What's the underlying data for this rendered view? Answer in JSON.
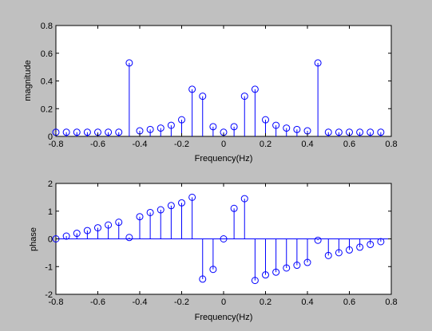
{
  "chart_data": [
    {
      "type": "stem",
      "xlabel": "Frequency(Hz)",
      "ylabel": "magnitude",
      "xlim": [
        -0.8,
        0.8
      ],
      "ylim": [
        0,
        0.8
      ],
      "xticks": [
        "-0.8",
        "-0.6",
        "-0.4",
        "-0.2",
        "0",
        "0.2",
        "0.4",
        "0.6",
        "0.8"
      ],
      "yticks": [
        "0",
        "0.2",
        "0.4",
        "0.6",
        "0.8"
      ],
      "grid": false,
      "marker_color": "#0000ff",
      "x": [
        -0.8,
        -0.75,
        -0.7,
        -0.65,
        -0.6,
        -0.55,
        -0.5,
        -0.45,
        -0.4,
        -0.35,
        -0.3,
        -0.25,
        -0.2,
        -0.15,
        -0.1,
        -0.05,
        0,
        0.05,
        0.1,
        0.15,
        0.2,
        0.25,
        0.3,
        0.35,
        0.4,
        0.45,
        0.5,
        0.55,
        0.6,
        0.65,
        0.7,
        0.75
      ],
      "y": [
        0.03,
        0.03,
        0.03,
        0.03,
        0.03,
        0.03,
        0.03,
        0.53,
        0.04,
        0.05,
        0.06,
        0.08,
        0.12,
        0.34,
        0.29,
        0.07,
        0.03,
        0.07,
        0.29,
        0.34,
        0.12,
        0.08,
        0.06,
        0.05,
        0.04,
        0.53,
        0.03,
        0.03,
        0.03,
        0.03,
        0.03,
        0.03
      ]
    },
    {
      "type": "stem",
      "xlabel": "Frequency(Hz)",
      "ylabel": "phase",
      "xlim": [
        -0.8,
        0.8
      ],
      "ylim": [
        -2,
        2
      ],
      "xticks": [
        "-0.8",
        "-0.6",
        "-0.4",
        "-0.2",
        "0",
        "0.2",
        "0.4",
        "0.6",
        "0.8"
      ],
      "yticks": [
        "-2",
        "-1",
        "0",
        "1",
        "2"
      ],
      "grid": false,
      "marker_color": "#0000ff",
      "x": [
        -0.8,
        -0.75,
        -0.7,
        -0.65,
        -0.6,
        -0.55,
        -0.5,
        -0.45,
        -0.4,
        -0.35,
        -0.3,
        -0.25,
        -0.2,
        -0.15,
        -0.1,
        -0.05,
        0,
        0.05,
        0.1,
        0.15,
        0.2,
        0.25,
        0.3,
        0.35,
        0.4,
        0.45,
        0.5,
        0.55,
        0.6,
        0.65,
        0.7,
        0.75
      ],
      "y": [
        0,
        0.1,
        0.2,
        0.3,
        0.4,
        0.5,
        0.6,
        0.05,
        0.8,
        0.95,
        1.05,
        1.2,
        1.3,
        1.5,
        -1.45,
        -1.1,
        0,
        1.1,
        1.45,
        -1.5,
        -1.3,
        -1.2,
        -1.05,
        -0.95,
        -0.85,
        -0.05,
        -0.6,
        -0.5,
        -0.4,
        -0.3,
        -0.2,
        -0.1
      ]
    }
  ]
}
